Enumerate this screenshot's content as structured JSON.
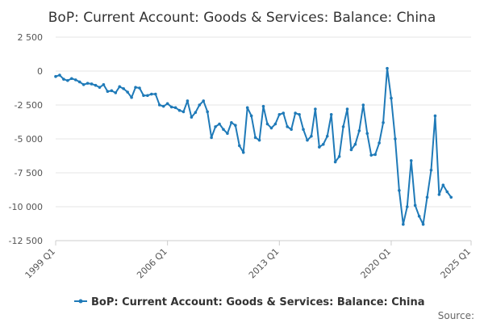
{
  "chart_data": {
    "type": "line",
    "title": "BoP: Current Account: Goods & Services: Balance: China",
    "xlabel": "",
    "ylabel": "",
    "x_tick_labels": [
      "1999 Q1",
      "2006 Q1",
      "2013 Q1",
      "2020 Q1",
      "2025 Q1"
    ],
    "y_tick_labels": [
      "2 500",
      "0",
      "-2 500",
      "-5 000",
      "-7 500",
      "-10 000",
      "-12 500"
    ],
    "y_ticks": [
      2500,
      0,
      -2500,
      -5000,
      -7500,
      -10000,
      -12500
    ],
    "ylim": [
      -12500,
      2500
    ],
    "x_start": "1999 Q1",
    "x_end": "2025 Q1",
    "grid": true,
    "legend_position": "bottom",
    "series": [
      {
        "name": "BoP: Current Account: Goods & Services: Balance: China",
        "color": "#1f7ab8",
        "values": [
          -400,
          -300,
          -600,
          -700,
          -550,
          -650,
          -800,
          -1000,
          -900,
          -950,
          -1050,
          -1200,
          -1000,
          -1500,
          -1450,
          -1600,
          -1150,
          -1300,
          -1550,
          -1950,
          -1200,
          -1250,
          -1800,
          -1800,
          -1700,
          -1700,
          -2500,
          -2600,
          -2400,
          -2650,
          -2700,
          -2900,
          -3000,
          -2200,
          -3400,
          -3050,
          -2500,
          -2200,
          -3000,
          -4900,
          -4100,
          -3900,
          -4300,
          -4600,
          -3800,
          -4000,
          -5500,
          -6000,
          -2700,
          -3300,
          -4900,
          -5100,
          -2600,
          -3900,
          -4200,
          -3900,
          -3200,
          -3100,
          -4100,
          -4300,
          -3100,
          -3200,
          -4300,
          -5100,
          -4800,
          -2800,
          -5600,
          -5400,
          -4800,
          -3200,
          -6700,
          -6300,
          -4100,
          -2800,
          -5800,
          -5400,
          -4400,
          -2500,
          -4600,
          -6200,
          -6150,
          -5300,
          -3800,
          200,
          -2000,
          -5000,
          -8800,
          -11300,
          -10000,
          -6600,
          -9900,
          -10700,
          -11300,
          -9300,
          -7300,
          -3300,
          -9100,
          -8400,
          -8900,
          -9300
        ]
      }
    ]
  },
  "source_label": "Source:"
}
